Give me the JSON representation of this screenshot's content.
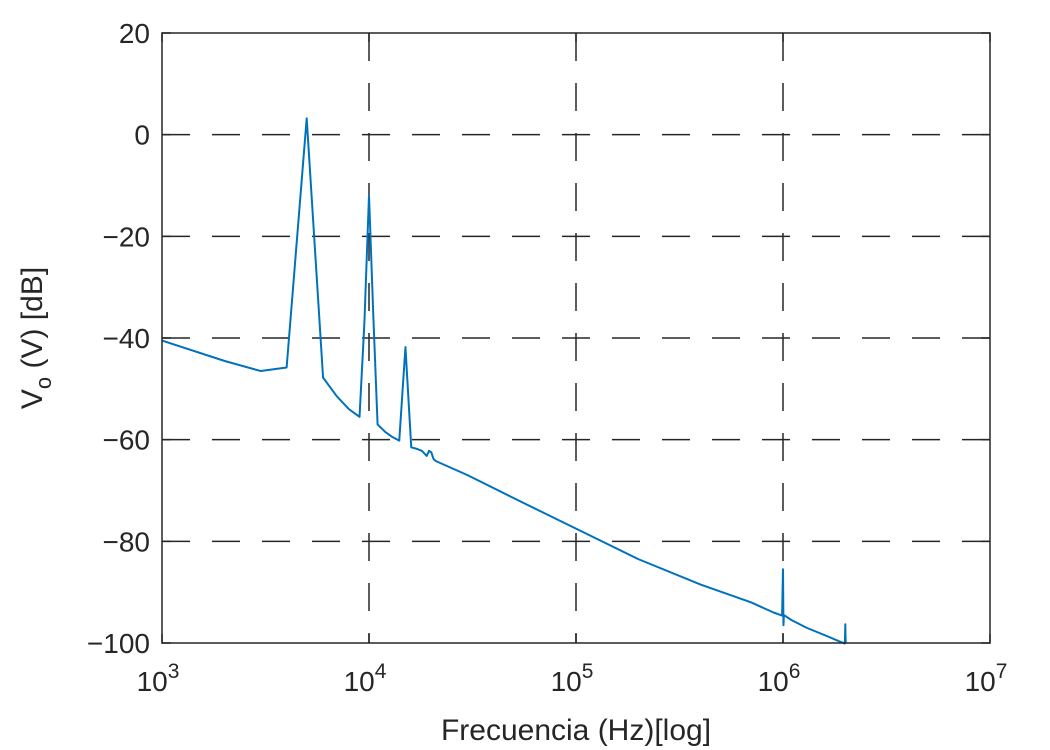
{
  "chart_data": {
    "type": "line",
    "title": "",
    "xlabel": "Frecuencia (Hz)[log]",
    "ylabel_main": "V",
    "ylabel_sub": "o",
    "ylabel_rest": " (V) [dB]",
    "x_scale": "log",
    "xlim": [
      1000,
      10000000
    ],
    "ylim": [
      -100,
      20
    ],
    "grid": true,
    "grid_style": "dashed",
    "x_ticks": [
      {
        "value": 1000,
        "base": "10",
        "exp": "3"
      },
      {
        "value": 10000,
        "base": "10",
        "exp": "4"
      },
      {
        "value": 100000,
        "base": "10",
        "exp": "5"
      },
      {
        "value": 1000000,
        "base": "10",
        "exp": "6"
      },
      {
        "value": 10000000,
        "base": "10",
        "exp": "7"
      }
    ],
    "y_ticks": [
      {
        "value": 20,
        "label": "20"
      },
      {
        "value": 0,
        "label": "0"
      },
      {
        "value": -20,
        "label": "−20"
      },
      {
        "value": -40,
        "label": "−40"
      },
      {
        "value": -60,
        "label": "−60"
      },
      {
        "value": -80,
        "label": "−80"
      },
      {
        "value": -100,
        "label": "−100"
      }
    ],
    "line_color": "#0072BD",
    "series": [
      {
        "name": "",
        "x": [
          1000,
          2000,
          3000,
          4000,
          5000,
          6000,
          7000,
          8000,
          9000,
          9500,
          10000,
          10500,
          11000,
          12000,
          13000,
          14000,
          15000,
          16000,
          17000,
          18000,
          19000,
          19500,
          20000,
          20500,
          21000,
          30000,
          50000,
          100000,
          200000,
          400000,
          700000,
          900000,
          990000,
          1000000,
          1005000,
          1010000,
          1100000,
          1300000,
          1600000,
          1900000,
          1990000,
          2000000,
          2005000,
          2010000
        ],
        "y": [
          -40.5,
          -44.5,
          -46.5,
          -45.8,
          3.2,
          -47.8,
          -51.5,
          -54,
          -55.5,
          -37,
          -12,
          -36,
          -57,
          -58.5,
          -59.5,
          -60.2,
          -41.8,
          -61.5,
          -61.8,
          -62.2,
          -63.2,
          -62.2,
          -62.5,
          -63.8,
          -64.2,
          -67,
          -71.5,
          -77.5,
          -83.5,
          -88.5,
          -92,
          -94,
          -94.6,
          -85.5,
          -96.5,
          -94.5,
          -95.5,
          -97,
          -98.5,
          -99.8,
          -100.1,
          -96.3,
          -99,
          -100
        ]
      }
    ]
  }
}
